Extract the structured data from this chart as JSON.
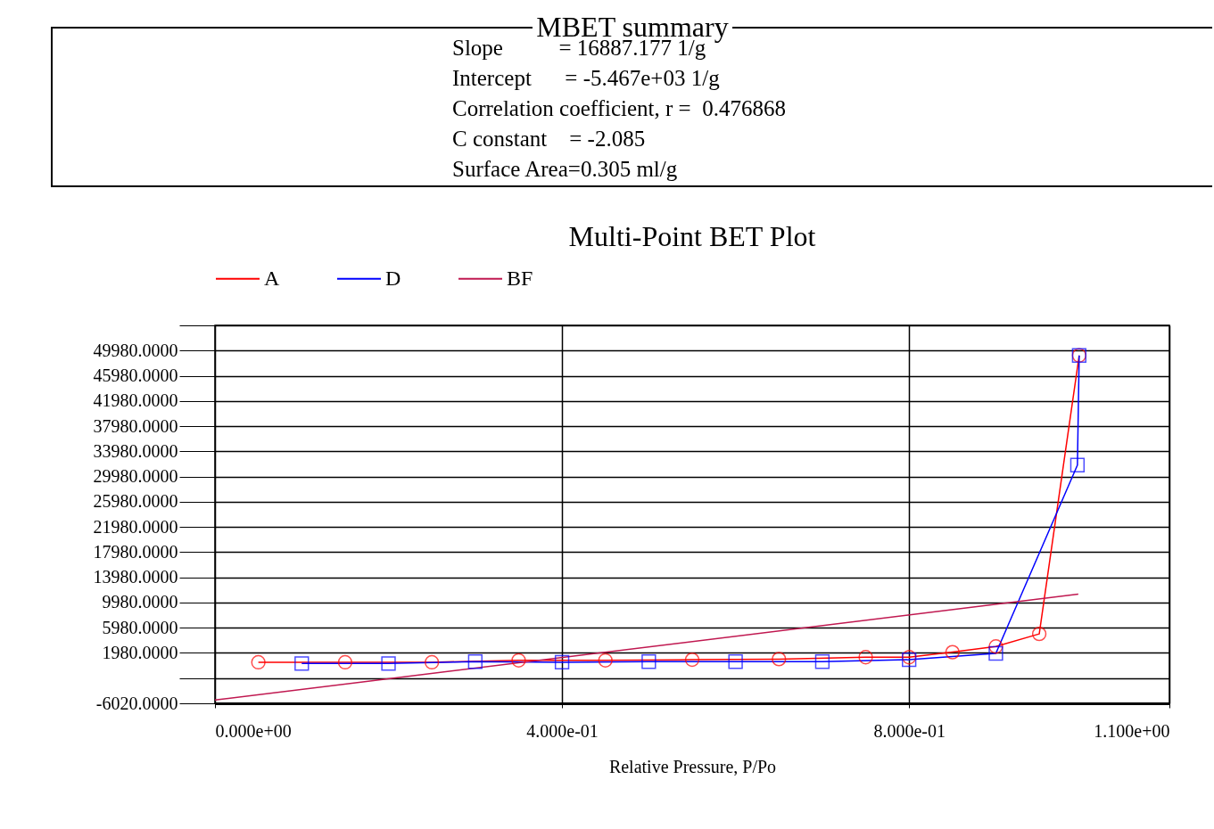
{
  "chart_data": {
    "type": "line",
    "title": "Multi-Point BET Plot",
    "xlabel": "Relative Pressure, P/Po",
    "annotations": [
      "MBET summary",
      "Slope          = 16887.177 1/g",
      "Intercept      = -5.467e+03 1/g",
      "Correlation coefficient, r =  0.476868",
      "C constant    = -2.085",
      "Surface Area=0.305 ml/g"
    ],
    "series": [
      {
        "name": "A",
        "color": "#ff0000",
        "marker": "circle",
        "x": [
          0.05,
          0.15,
          0.25,
          0.35,
          0.45,
          0.55,
          0.65,
          0.75,
          0.8,
          0.85,
          0.9,
          0.95,
          0.996
        ],
        "values": [
          500,
          500,
          500,
          800,
          800,
          900,
          1000,
          1300,
          1300,
          2100,
          3000,
          5000,
          49200
        ]
      },
      {
        "name": "D",
        "color": "#0000ff",
        "marker": "square",
        "x": [
          0.1,
          0.2,
          0.3,
          0.4,
          0.5,
          0.6,
          0.7,
          0.8,
          0.9,
          0.994,
          0.996
        ],
        "values": [
          300,
          300,
          600,
          500,
          600,
          600,
          600,
          900,
          1900,
          31800,
          49200
        ]
      },
      {
        "name": "BF",
        "color": "#c01850",
        "marker": "none",
        "x": [
          0,
          0.995
        ],
        "values": [
          -5500,
          11300
        ]
      }
    ],
    "xlim": [
      0,
      1.1
    ],
    "xticks": [
      {
        "value": 0,
        "label": "0.000e+00"
      },
      {
        "value": 0.4,
        "label": "4.000e-01"
      },
      {
        "value": 0.8,
        "label": "8.000e-01"
      },
      {
        "value": 1.1,
        "label": "1.100e+00"
      }
    ],
    "ylim": [
      -6020,
      53980
    ],
    "yticks": [
      {
        "value": -6020,
        "label": "-6020.0000"
      },
      {
        "value": -2020,
        "label": null
      },
      {
        "value": 1980,
        "label": "1980.0000"
      },
      {
        "value": 5980,
        "label": "5980.0000"
      },
      {
        "value": 9980,
        "label": "9980.0000"
      },
      {
        "value": 13980,
        "label": "13980.0000"
      },
      {
        "value": 17980,
        "label": "17980.0000"
      },
      {
        "value": 21980,
        "label": "21980.0000"
      },
      {
        "value": 25980,
        "label": "25980.0000"
      },
      {
        "value": 29980,
        "label": "29980.0000"
      },
      {
        "value": 33980,
        "label": "33980.0000"
      },
      {
        "value": 37980,
        "label": "37980.0000"
      },
      {
        "value": 41980,
        "label": "41980.0000"
      },
      {
        "value": 45980,
        "label": "45980.0000"
      },
      {
        "value": 49980,
        "label": "49980.0000"
      },
      {
        "value": 53980,
        "label": null
      }
    ],
    "grid": true,
    "legend": "top left",
    "line_style": "solid"
  }
}
